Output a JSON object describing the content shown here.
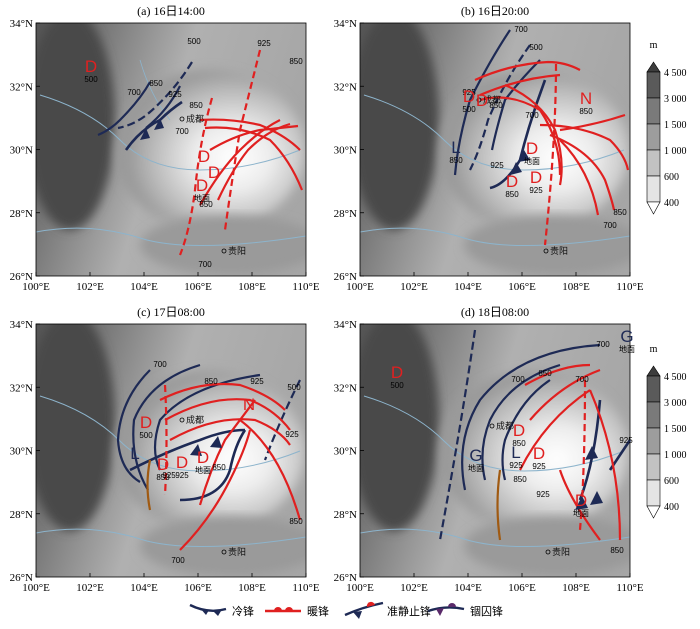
{
  "panels": [
    {
      "title": "(a) 16日14:00",
      "levels": [
        "500",
        "925",
        "850",
        "700",
        "850",
        "925",
        "700",
        "850",
        "700",
        "850"
      ],
      "cities": [
        "成都",
        "贵阳"
      ],
      "systems": [
        {
          "sym": "D",
          "lvl": "500",
          "c": "red"
        },
        {
          "sym": "D",
          "lvl": "",
          "c": "red"
        },
        {
          "sym": "D",
          "lvl": "地面",
          "c": "red"
        },
        {
          "sym": "D",
          "lvl": "",
          "c": "red"
        }
      ]
    },
    {
      "title": "(b) 16日20:00",
      "levels": [
        "700",
        "500",
        "925",
        "850",
        "700",
        "925",
        "850",
        "700"
      ],
      "cities": [
        "成都",
        "贵阳"
      ],
      "systems": [
        {
          "sym": "D",
          "lvl": "500",
          "c": "red"
        },
        {
          "sym": "D",
          "lvl": "",
          "c": "red"
        },
        {
          "sym": "N",
          "lvl": "850",
          "c": "red"
        },
        {
          "sym": "L",
          "lvl": "850",
          "c": "navy"
        },
        {
          "sym": "D",
          "lvl": "地面",
          "c": "red"
        },
        {
          "sym": "D",
          "lvl": "850",
          "c": "red"
        },
        {
          "sym": "D",
          "lvl": "925",
          "c": "red"
        }
      ]
    },
    {
      "title": "(c) 17日08:00",
      "levels": [
        "700",
        "850",
        "925",
        "500",
        "925",
        "850",
        "700",
        "850",
        "925"
      ],
      "cities": [
        "成都",
        "贵阳"
      ],
      "systems": [
        {
          "sym": "D",
          "lvl": "500",
          "c": "red"
        },
        {
          "sym": "L",
          "lvl": "",
          "c": "navy"
        },
        {
          "sym": "D",
          "lvl": "850",
          "c": "red"
        },
        {
          "sym": "D",
          "lvl": "925",
          "c": "red"
        },
        {
          "sym": "D",
          "lvl": "地面",
          "c": "red"
        },
        {
          "sym": "N",
          "lvl": "",
          "c": "red"
        }
      ]
    },
    {
      "title": "(d) 18日08:00",
      "levels": [
        "700",
        "700",
        "850",
        "925",
        "700",
        "850",
        "925",
        "850"
      ],
      "cities": [
        "成都",
        "贵阳"
      ],
      "systems": [
        {
          "sym": "D",
          "lvl": "500",
          "c": "red"
        },
        {
          "sym": "G",
          "lvl": "地面",
          "c": "navy"
        },
        {
          "sym": "G",
          "lvl": "地面",
          "c": "navy"
        },
        {
          "sym": "L",
          "lvl": "925",
          "c": "navy"
        },
        {
          "sym": "D",
          "lvl": "850",
          "c": "red"
        },
        {
          "sym": "D",
          "lvl": "925",
          "c": "red"
        },
        {
          "sym": "D",
          "lvl": "地面",
          "c": "red"
        }
      ]
    }
  ],
  "axes": {
    "x_ticks": [
      "100°E",
      "102°E",
      "104°E",
      "106°E",
      "108°E",
      "110°E"
    ],
    "y_ticks": [
      "34°N",
      "32°N",
      "30°N",
      "28°N",
      "26°N"
    ]
  },
  "colorbar": {
    "unit": "m",
    "labels": [
      "4 500",
      "3 000",
      "1 500",
      "1 000",
      "600",
      "400"
    ],
    "colors": [
      "#3d3d3d",
      "#5a5a5a",
      "#7a7a7a",
      "#9d9d9d",
      "#c2c2c2",
      "#e4e4e4",
      "#ffffff"
    ]
  },
  "legend": [
    {
      "label": "冷锋",
      "type": "cold"
    },
    {
      "label": "暖锋",
      "type": "warm"
    },
    {
      "label": "准静止锋",
      "type": "stationary"
    },
    {
      "label": "锢囚锋",
      "type": "occluded"
    }
  ],
  "colors": {
    "warm": "#e02020",
    "cold": "#1e2a55",
    "brown": "#a05a12"
  }
}
